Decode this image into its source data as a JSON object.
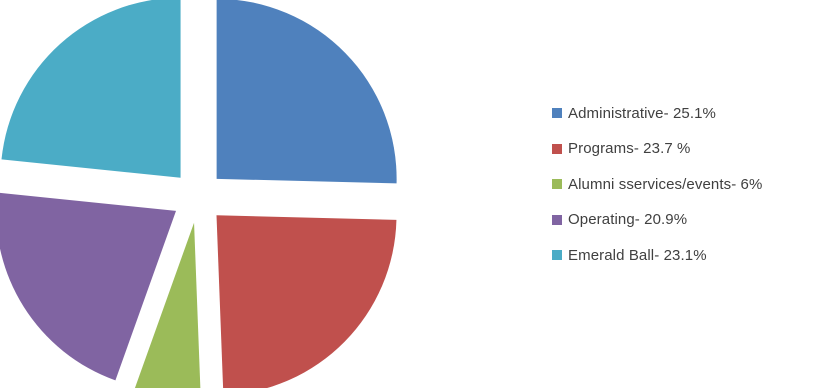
{
  "chart_data": {
    "type": "pie",
    "title": "",
    "exploded": true,
    "legend_position": "right",
    "slices": [
      {
        "label": "Administrative- 25.1%",
        "value": 25.1,
        "color": "#4F81BD"
      },
      {
        "label": "Programs- 23.7 %",
        "value": 23.7,
        "color": "#C0504D"
      },
      {
        "label": "Alumni sservices/events- 6%",
        "value": 6,
        "color": "#9BBB59"
      },
      {
        "label": "Operating- 20.9%",
        "value": 20.9,
        "color": "#8064A2"
      },
      {
        "label": "Emerald Ball- 23.1%",
        "value": 23.1,
        "color": "#4BACC6"
      }
    ]
  }
}
